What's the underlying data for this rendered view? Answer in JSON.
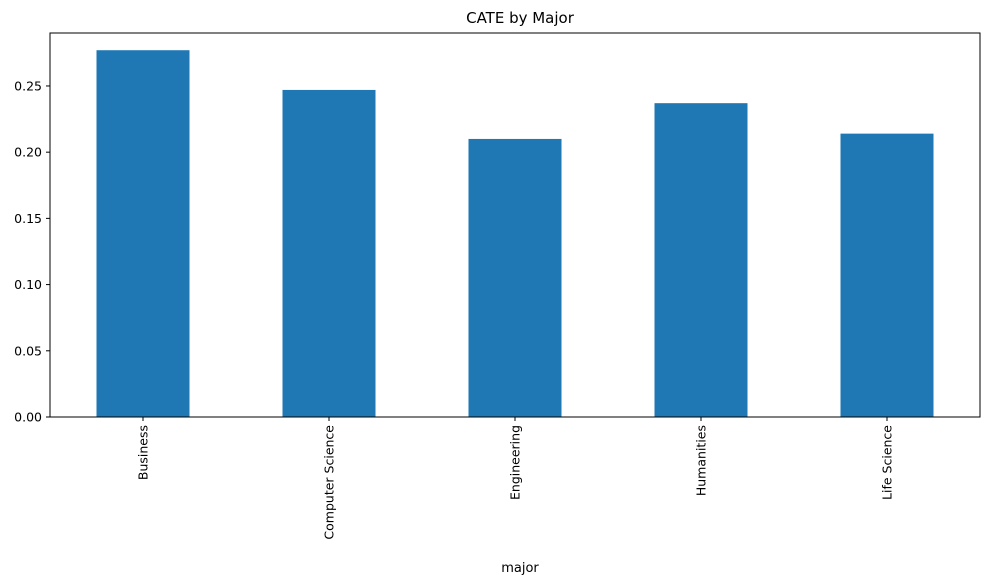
{
  "chart_data": {
    "type": "bar",
    "title": "CATE by Major",
    "xlabel": "major",
    "ylabel": "",
    "categories": [
      "Business",
      "Computer Science",
      "Engineering",
      "Humanities",
      "Life Science"
    ],
    "values": [
      0.277,
      0.247,
      0.21,
      0.237,
      0.214
    ],
    "ylim": [
      0,
      0.29
    ],
    "yticks": [
      "0.00",
      "0.05",
      "0.10",
      "0.15",
      "0.20",
      "0.25"
    ],
    "ytick_values": [
      0,
      0.05,
      0.1,
      0.15,
      0.2,
      0.25
    ],
    "grid": false,
    "legend": "none",
    "bar_color": "#1f77b4"
  }
}
